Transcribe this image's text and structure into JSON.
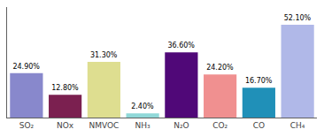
{
  "chart_data": {
    "type": "bar",
    "categories": [
      "SO₂",
      "NOx",
      "NMVOC",
      "NH₃",
      "N₂O",
      "CO₂",
      "CO",
      "CH₄"
    ],
    "values": [
      24.9,
      12.8,
      31.3,
      2.4,
      36.6,
      24.2,
      16.7,
      52.1
    ],
    "value_labels": [
      "24.90%",
      "12.80%",
      "31.30%",
      "2.40%",
      "36.60%",
      "24.20%",
      "16.70%",
      "52.10%"
    ],
    "data_labels": true,
    "colors": [
      "#8888cc",
      "#7b2050",
      "#dede90",
      "#90d8d8",
      "#500878",
      "#f09090",
      "#2090b8",
      "#b0b8e8"
    ],
    "ylim": [
      0,
      62
    ],
    "tick_labels": "x",
    "grid": false
  }
}
